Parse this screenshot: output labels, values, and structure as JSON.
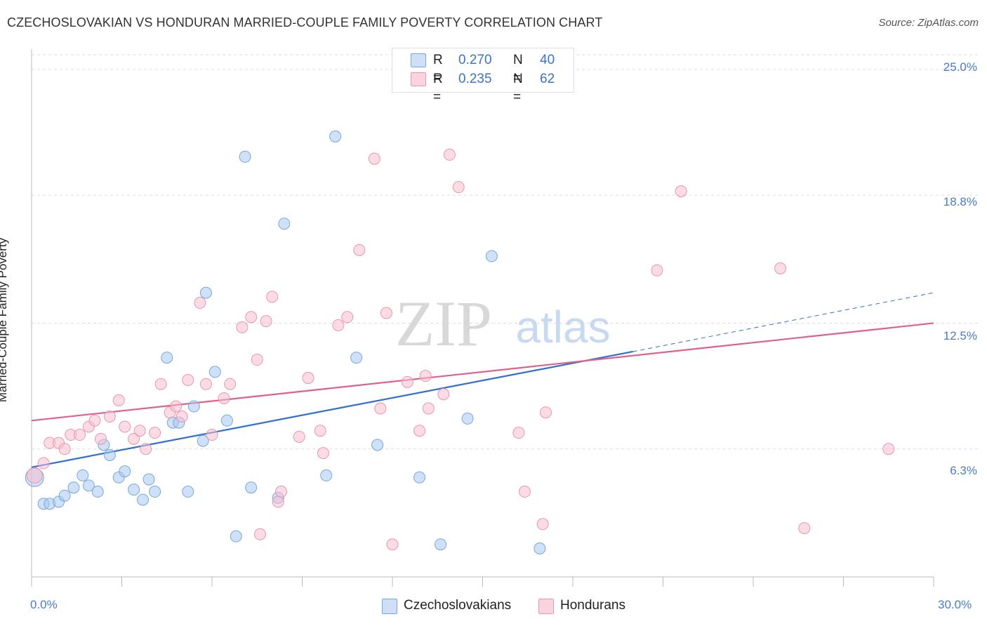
{
  "title": "CZECHOSLOVAKIAN VS HONDURAN MARRIED-COUPLE FAMILY POVERTY CORRELATION CHART",
  "source": "Source: ZipAtlas.com",
  "watermark": {
    "zip": "ZIP",
    "atlas": "atlas"
  },
  "legend": {
    "rows": [
      {
        "r_label": "R =",
        "r_value": "0.270",
        "n_label": "N =",
        "n_value": "40",
        "color": "#a8c8f0",
        "border": "#7aa6de"
      },
      {
        "r_label": "R =",
        "r_value": "0.235",
        "n_label": "N =",
        "n_value": "62",
        "color": "#f8c0d0",
        "border": "#e896ae"
      }
    ]
  },
  "bottom_legend": [
    "Czechoslovakians",
    "Hondurans"
  ],
  "chart_data": {
    "type": "scatter",
    "title": "CZECHOSLOVAKIAN VS HONDURAN MARRIED-COUPLE FAMILY POVERTY CORRELATION CHART",
    "xlabel": "",
    "ylabel": "Married-Couple Family Poverty",
    "xlim": [
      0,
      30
    ],
    "ylim": [
      0,
      26
    ],
    "x_tick_labels": [
      "0.0%",
      "30.0%"
    ],
    "y_ticks": [
      6.3,
      12.5,
      18.8,
      25.0
    ],
    "y_tick_labels": [
      "6.3%",
      "12.5%",
      "18.8%",
      "25.0%"
    ],
    "grid": "horizontal dashed",
    "legend_position": "top-center",
    "series": [
      {
        "name": "Czechoslovakians",
        "color": "#a8c8f0",
        "stroke": "#7aa6de",
        "trend_color": "#2e6fcf",
        "trend": {
          "x0": 0,
          "y0": 5.4,
          "x1": 20.0,
          "y1": 11.1,
          "dash_to_x": 30,
          "dash_to_y": 14.0
        },
        "points": [
          [
            0.1,
            4.9
          ],
          [
            0.4,
            3.6
          ],
          [
            0.6,
            3.6
          ],
          [
            0.9,
            3.7
          ],
          [
            1.1,
            4.0
          ],
          [
            1.4,
            4.4
          ],
          [
            1.7,
            5.0
          ],
          [
            1.9,
            4.5
          ],
          [
            2.2,
            4.2
          ],
          [
            2.4,
            6.5
          ],
          [
            2.6,
            6.0
          ],
          [
            2.9,
            4.9
          ],
          [
            3.1,
            5.2
          ],
          [
            3.4,
            4.3
          ],
          [
            3.7,
            3.8
          ],
          [
            3.9,
            4.8
          ],
          [
            4.1,
            4.2
          ],
          [
            4.5,
            10.8
          ],
          [
            4.7,
            7.6
          ],
          [
            4.9,
            7.6
          ],
          [
            5.2,
            4.2
          ],
          [
            5.4,
            8.4
          ],
          [
            5.7,
            6.7
          ],
          [
            5.8,
            14.0
          ],
          [
            6.1,
            10.1
          ],
          [
            6.5,
            7.7
          ],
          [
            6.8,
            2.0
          ],
          [
            7.1,
            20.7
          ],
          [
            7.3,
            4.4
          ],
          [
            8.2,
            3.9
          ],
          [
            8.4,
            17.4
          ],
          [
            9.8,
            5.0
          ],
          [
            10.1,
            21.7
          ],
          [
            10.8,
            10.8
          ],
          [
            11.5,
            6.5
          ],
          [
            12.9,
            4.9
          ],
          [
            13.6,
            1.6
          ],
          [
            14.5,
            7.8
          ],
          [
            15.3,
            15.8
          ],
          [
            16.9,
            1.4
          ]
        ]
      },
      {
        "name": "Hondurans",
        "color": "#f8c0d0",
        "stroke": "#e896ae",
        "trend_color": "#e0608a",
        "trend": {
          "x0": 0,
          "y0": 7.7,
          "x1": 30,
          "y1": 12.5
        },
        "points": [
          [
            0.1,
            5.0
          ],
          [
            0.4,
            5.6
          ],
          [
            0.6,
            6.6
          ],
          [
            0.9,
            6.6
          ],
          [
            1.1,
            6.3
          ],
          [
            1.3,
            7.0
          ],
          [
            1.6,
            7.0
          ],
          [
            1.9,
            7.4
          ],
          [
            2.1,
            7.7
          ],
          [
            2.3,
            6.8
          ],
          [
            2.6,
            7.9
          ],
          [
            2.9,
            8.7
          ],
          [
            3.1,
            7.4
          ],
          [
            3.4,
            6.8
          ],
          [
            3.6,
            7.2
          ],
          [
            3.8,
            6.3
          ],
          [
            4.1,
            7.1
          ],
          [
            4.3,
            9.5
          ],
          [
            4.6,
            8.1
          ],
          [
            4.8,
            8.4
          ],
          [
            5.0,
            7.9
          ],
          [
            5.2,
            9.7
          ],
          [
            5.6,
            13.5
          ],
          [
            5.8,
            9.5
          ],
          [
            6.0,
            7.0
          ],
          [
            6.4,
            8.8
          ],
          [
            6.6,
            9.5
          ],
          [
            7.0,
            12.3
          ],
          [
            7.3,
            12.8
          ],
          [
            7.5,
            10.7
          ],
          [
            7.6,
            2.1
          ],
          [
            7.8,
            12.6
          ],
          [
            8.0,
            13.8
          ],
          [
            8.2,
            3.7
          ],
          [
            8.3,
            4.2
          ],
          [
            8.9,
            6.9
          ],
          [
            9.2,
            9.8
          ],
          [
            9.6,
            7.2
          ],
          [
            9.7,
            6.1
          ],
          [
            10.2,
            12.4
          ],
          [
            10.5,
            12.8
          ],
          [
            10.9,
            16.1
          ],
          [
            11.4,
            20.6
          ],
          [
            11.6,
            8.3
          ],
          [
            11.8,
            13.0
          ],
          [
            12.0,
            1.6
          ],
          [
            12.5,
            9.6
          ],
          [
            12.9,
            7.2
          ],
          [
            13.1,
            9.9
          ],
          [
            13.2,
            8.3
          ],
          [
            13.7,
            9.0
          ],
          [
            13.9,
            20.8
          ],
          [
            14.2,
            19.2
          ],
          [
            16.2,
            7.1
          ],
          [
            16.4,
            4.2
          ],
          [
            17.0,
            2.6
          ],
          [
            17.1,
            8.1
          ],
          [
            20.8,
            15.1
          ],
          [
            21.6,
            19.0
          ],
          [
            24.9,
            15.2
          ],
          [
            25.7,
            2.4
          ],
          [
            28.5,
            6.3
          ]
        ]
      }
    ]
  }
}
